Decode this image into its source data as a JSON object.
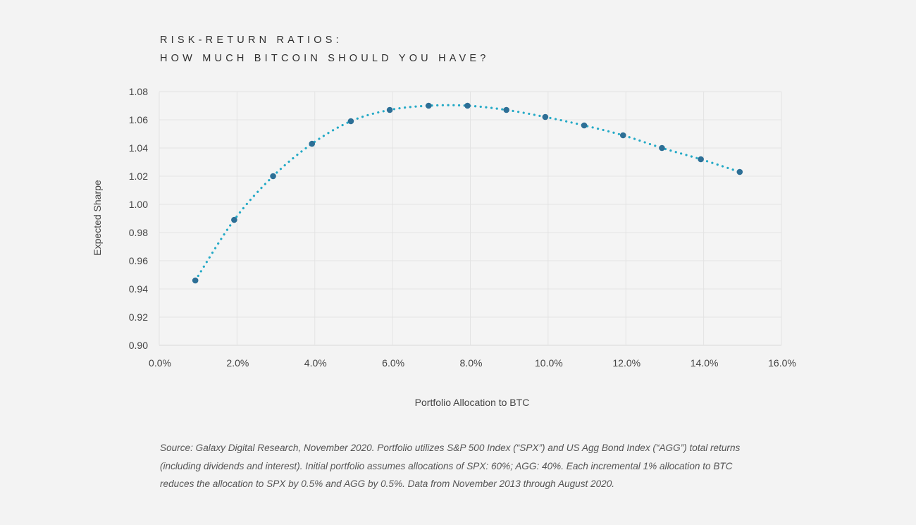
{
  "chart_data": {
    "type": "line",
    "title": [
      "RISK-RETURN RATIOS:",
      "HOW MUCH BITCOIN SHOULD YOU HAVE?"
    ],
    "xlabel": "Portfolio Allocation to BTC",
    "ylabel": "Expected Sharpe",
    "xlim": [
      0,
      16
    ],
    "ylim": [
      0.9,
      1.08
    ],
    "x_ticks": [
      0,
      2,
      4,
      6,
      8,
      10,
      12,
      14,
      16
    ],
    "x_tick_labels": [
      "0.0%",
      "2.0%",
      "4.0%",
      "6.0%",
      "8.0%",
      "10.0%",
      "12.0%",
      "14.0%",
      "16.0%"
    ],
    "y_ticks": [
      0.9,
      0.92,
      0.94,
      0.96,
      0.98,
      1.0,
      1.02,
      1.04,
      1.06,
      1.08
    ],
    "y_tick_labels": [
      "0.90",
      "0.92",
      "0.94",
      "0.96",
      "0.98",
      "1.00",
      "1.02",
      "1.04",
      "1.06",
      "1.08"
    ],
    "grid": true,
    "series": [
      {
        "name": "Expected Sharpe",
        "line_style": "dotted",
        "line_color": "#23a9c6",
        "marker_color": "#2d6f96",
        "x": [
          1,
          2,
          3,
          4,
          5,
          6,
          7,
          8,
          9,
          10,
          11,
          12,
          13,
          14,
          15
        ],
        "values": [
          0.946,
          0.989,
          1.02,
          1.043,
          1.059,
          1.067,
          1.07,
          1.07,
          1.067,
          1.062,
          1.056,
          1.049,
          1.04,
          1.032,
          1.023
        ]
      }
    ]
  },
  "source_note": "Source: Galaxy Digital Research, November 2020. Portfolio utilizes S&P 500 Index (“SPX”) and US Agg Bond Index (“AGG”) total returns (including dividends and interest). Initial portfolio assumes allocations of SPX: 60%; AGG: 40%. Each incremental 1% allocation to BTC reduces the allocation to SPX by 0.5% and AGG by 0.5%. Data from November 2013 through August 2020."
}
